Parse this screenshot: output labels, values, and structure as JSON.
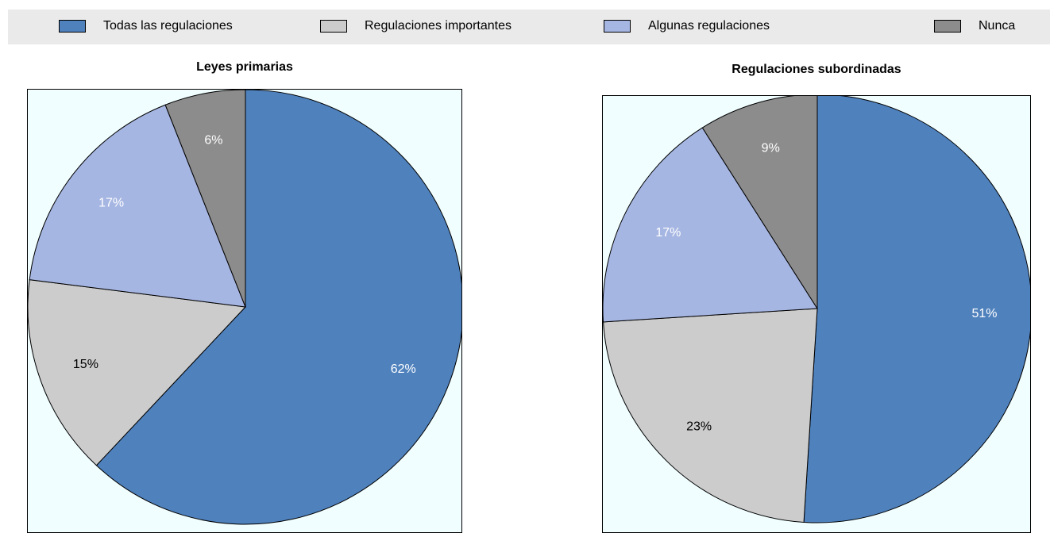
{
  "legend": [
    {
      "label": "Todas las regulaciones",
      "color": "#4f81bd"
    },
    {
      "label": "Regulaciones importantes",
      "color": "#cccccc"
    },
    {
      "label": "Algunas regulaciones",
      "color": "#a6b6e2"
    },
    {
      "label": "Nunca",
      "color": "#8c8c8c"
    }
  ],
  "chart_data": [
    {
      "type": "pie",
      "title": "Leyes primarias",
      "slices": [
        {
          "label": "Todas las regulaciones",
          "value": 62,
          "display": "62%",
          "color": "#4f81bd",
          "label_color": "#ffffff"
        },
        {
          "label": "Regulaciones importantes",
          "value": 15,
          "display": "15%",
          "color": "#cccccc",
          "label_color": "#000000"
        },
        {
          "label": "Algunas regulaciones",
          "value": 17,
          "display": "17%",
          "color": "#a6b6e2",
          "label_color": "#ffffff"
        },
        {
          "label": "Nunca",
          "value": 6,
          "display": "6%",
          "color": "#8c8c8c",
          "label_color": "#ffffff"
        }
      ]
    },
    {
      "type": "pie",
      "title": "Regulaciones subordinadas",
      "slices": [
        {
          "label": "Todas las regulaciones",
          "value": 51,
          "display": "51%",
          "color": "#4f81bd",
          "label_color": "#ffffff"
        },
        {
          "label": "Regulaciones importantes",
          "value": 23,
          "display": "23%",
          "color": "#cccccc",
          "label_color": "#000000"
        },
        {
          "label": "Algunas regulaciones",
          "value": 17,
          "display": "17%",
          "color": "#a6b6e2",
          "label_color": "#ffffff"
        },
        {
          "label": "Nunca",
          "value": 9,
          "display": "9%",
          "color": "#8c8c8c",
          "label_color": "#ffffff"
        }
      ]
    }
  ]
}
